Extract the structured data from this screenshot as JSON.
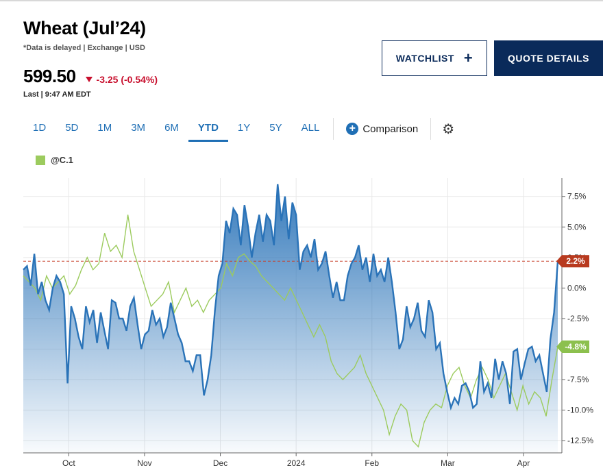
{
  "header": {
    "title": "Wheat (Jul’24)",
    "meta": "*Data is delayed | Exchange | USD",
    "price": "599.50",
    "change": "-3.25 (-0.54%)",
    "last": "Last | 9:47 AM EDT"
  },
  "buttons": {
    "watchlist": "WATCHLIST",
    "quote_details": "QUOTE DETAILS"
  },
  "ranges": [
    "1D",
    "5D",
    "1M",
    "3M",
    "6M",
    "YTD",
    "1Y",
    "5Y",
    "ALL"
  ],
  "active_range": "YTD",
  "comparison_label": "Comparison",
  "legend_label": "@C.1",
  "colors": {
    "main_line": "#2a73b8",
    "compare_line": "#9ccb5e",
    "ref_line": "#c8402a",
    "badge_main": "#b83a1f",
    "badge_compare": "#8cc04e"
  },
  "chart_data": {
    "type": "area",
    "x_tick_labels": [
      "Oct",
      "Nov",
      "Dec",
      "2024",
      "Feb",
      "Mar",
      "Apr"
    ],
    "y_tick_labels": [
      "7.5%",
      "5.0%",
      "2.5%",
      "0.0%",
      "-2.5%",
      "-5.0%",
      "-7.5%",
      "-10.0%",
      "-12.5%"
    ],
    "ylim": [
      -13.5,
      9
    ],
    "reference_line": 2.2,
    "series": [
      {
        "name": "Wheat (Jul’24)",
        "end_label": "2.2%",
        "values": [
          1.5,
          1.8,
          0.2,
          2.8,
          -0.5,
          0.5,
          -1,
          -1.8,
          0,
          1,
          0.5,
          -0.5,
          -7.8,
          -1.5,
          -2.5,
          -4,
          -5,
          -1.5,
          -2.8,
          -1.8,
          -4.5,
          -2,
          -3.5,
          -5,
          -1,
          -1.2,
          -2.5,
          -2.5,
          -3.5,
          -1.5,
          -0.8,
          -3,
          -5,
          -3.8,
          -3.5,
          -1.8,
          -3,
          -2.5,
          -4,
          -3.2,
          -1.2,
          -2.5,
          -3.8,
          -4.5,
          -6,
          -6,
          -6.8,
          -5.5,
          -5.5,
          -8.8,
          -7.5,
          -5.5,
          -1.8,
          1,
          2,
          5.5,
          4.5,
          6.5,
          6,
          3.5,
          6.8,
          5,
          2.5,
          4.5,
          6,
          3.8,
          6,
          5.5,
          3.5,
          8.5,
          5.5,
          7.5,
          4,
          7,
          6,
          1.5,
          3,
          3.5,
          2.5,
          4,
          1.5,
          2,
          3,
          1,
          -0.8,
          0.5,
          -1,
          -1,
          1,
          2,
          2.5,
          3.5,
          1.5,
          2.5,
          0.5,
          2.8,
          1,
          1.5,
          0.5,
          2.5,
          0.5,
          -2,
          -5,
          -4.2,
          -1.5,
          -3.2,
          -2.5,
          -1.2,
          -3.5,
          -4,
          -1,
          -2,
          -5,
          -4.5,
          -7,
          -8.5,
          -9.8,
          -9,
          -9.5,
          -8,
          -7.8,
          -8.5,
          -9.8,
          -9.5,
          -6,
          -8.5,
          -7.8,
          -9,
          -5.8,
          -7.5,
          -6,
          -7,
          -9.5,
          -5.2,
          -5,
          -7.5,
          -6.2,
          -5,
          -4.8,
          -6,
          -5.5,
          -7,
          -8.5,
          -4.2,
          -2,
          2.2
        ]
      },
      {
        "name": "@C.1",
        "end_label": "-4.8%",
        "values": [
          1,
          0.5,
          0,
          -1,
          1,
          0,
          0.5,
          1,
          -0.5,
          0.2,
          1.5,
          2.5,
          1.5,
          2,
          4.5,
          3,
          3.5,
          2.5,
          6,
          3,
          1.5,
          0,
          -1.5,
          -1,
          -0.5,
          0.5,
          -2,
          -1,
          0,
          -1.5,
          -1,
          -2,
          -1,
          -0.5,
          0,
          2,
          1,
          2.5,
          2.8,
          2.2,
          1.8,
          1,
          0.5,
          0,
          -0.5,
          -1,
          0,
          -1,
          -2,
          -3,
          -4,
          -3,
          -4,
          -6,
          -7,
          -7.5,
          -7,
          -6.5,
          -5.5,
          -7,
          -8,
          -9,
          -10,
          -12,
          -10.5,
          -9.5,
          -10,
          -12.5,
          -13,
          -11,
          -10,
          -9.5,
          -9.8,
          -8,
          -7,
          -6.5,
          -8,
          -9,
          -7.5,
          -6.5,
          -7.5,
          -9,
          -8,
          -7,
          -8.5,
          -10,
          -8,
          -9.5,
          -8.5,
          -9,
          -10.5,
          -7.5,
          -4.8
        ]
      }
    ]
  }
}
